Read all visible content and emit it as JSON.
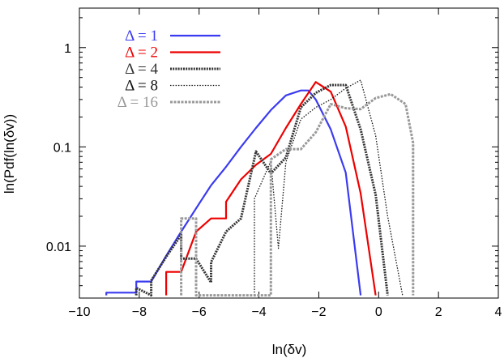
{
  "chart_data": {
    "type": "line",
    "xlabel": "ln(δv)",
    "ylabel": "ln(Pdf(ln(δv))",
    "xlim": [
      -10,
      4
    ],
    "ylim": [
      0.003,
      2.5
    ],
    "yscale": "log",
    "grid": false,
    "legend_position": "top-left",
    "x_ticks": [
      -10,
      -8,
      -6,
      -4,
      -2,
      0,
      2,
      4
    ],
    "x_tick_labels": [
      "−10",
      "−8",
      "−6",
      "−4",
      "−2",
      "0",
      "2",
      "4"
    ],
    "y_ticks": [
      0.01,
      0.1,
      1
    ],
    "y_tick_labels": [
      "0.01",
      "0.1",
      "1"
    ],
    "series": [
      {
        "name": "Δ = 1",
        "color": "#3b3bf0",
        "style": "solid",
        "points": [
          [
            -9.1,
            0.0032
          ],
          [
            -9.1,
            0.0034
          ],
          [
            -8.1,
            0.0034
          ],
          [
            -8.1,
            0.0044
          ],
          [
            -7.6,
            0.0044
          ],
          [
            -7.1,
            0.008
          ],
          [
            -6.6,
            0.014
          ],
          [
            -6.1,
            0.024
          ],
          [
            -5.6,
            0.041
          ],
          [
            -5.1,
            0.063
          ],
          [
            -4.6,
            0.1
          ],
          [
            -4.1,
            0.155
          ],
          [
            -3.6,
            0.235
          ],
          [
            -3.1,
            0.33
          ],
          [
            -2.6,
            0.37
          ],
          [
            -2.35,
            0.37
          ],
          [
            -2.1,
            0.3
          ],
          [
            -1.6,
            0.15
          ],
          [
            -1.1,
            0.055
          ],
          [
            -0.6,
            0.0032
          ]
        ]
      },
      {
        "name": "Δ = 2",
        "color": "#ee0000",
        "style": "solid",
        "points": [
          [
            -7.1,
            0.0032
          ],
          [
            -7.1,
            0.0055
          ],
          [
            -6.6,
            0.0055
          ],
          [
            -6.1,
            0.014
          ],
          [
            -5.6,
            0.019
          ],
          [
            -5.1,
            0.019
          ],
          [
            -5.1,
            0.028
          ],
          [
            -4.6,
            0.047
          ],
          [
            -4.1,
            0.066
          ],
          [
            -3.6,
            0.085
          ],
          [
            -3.1,
            0.155
          ],
          [
            -2.6,
            0.27
          ],
          [
            -2.1,
            0.45
          ],
          [
            -1.6,
            0.36
          ],
          [
            -1.1,
            0.16
          ],
          [
            -0.6,
            0.034
          ],
          [
            -0.1,
            0.0032
          ]
        ]
      },
      {
        "name": "Δ = 4",
        "color": "#333333",
        "style": "dense-dot",
        "points": [
          [
            -8.1,
            0.0032
          ],
          [
            -8.1,
            0.0038
          ],
          [
            -7.6,
            0.0032
          ],
          [
            -7.6,
            0.0045
          ],
          [
            -7.1,
            0.0078
          ],
          [
            -6.6,
            0.013
          ],
          [
            -6.6,
            0.0075
          ],
          [
            -6.1,
            0.0075
          ],
          [
            -5.6,
            0.0043
          ],
          [
            -5.6,
            0.0069
          ],
          [
            -5.1,
            0.014
          ],
          [
            -4.6,
            0.019
          ],
          [
            -4.1,
            0.09
          ],
          [
            -3.6,
            0.054
          ],
          [
            -3.1,
            0.078
          ],
          [
            -2.6,
            0.25
          ],
          [
            -2.1,
            0.35
          ],
          [
            -1.6,
            0.42
          ],
          [
            -1.1,
            0.42
          ],
          [
            -0.6,
            0.15
          ],
          [
            -0.1,
            0.033
          ],
          [
            0.3,
            0.0032
          ]
        ]
      },
      {
        "name": "Δ = 8",
        "color": "#111111",
        "style": "dotted",
        "points": [
          [
            -4.15,
            0.0032
          ],
          [
            -4.15,
            0.03
          ],
          [
            -3.6,
            0.072
          ],
          [
            -3.35,
            0.0095
          ],
          [
            -3.1,
            0.07
          ],
          [
            -2.6,
            0.19
          ],
          [
            -2.1,
            0.25
          ],
          [
            -1.6,
            0.3
          ],
          [
            -1.1,
            0.39
          ],
          [
            -0.6,
            0.47
          ],
          [
            -0.1,
            0.13
          ],
          [
            0.3,
            0.02
          ],
          [
            0.8,
            0.0032
          ]
        ]
      },
      {
        "name": "Δ = 16",
        "color": "#999999",
        "style": "dashed",
        "points": [
          [
            -6.6,
            0.0032
          ],
          [
            -6.6,
            0.019
          ],
          [
            -6.1,
            0.019
          ],
          [
            -6.1,
            0.0032
          ],
          [
            -4.1,
            0.0032
          ],
          [
            -3.6,
            0.0032
          ],
          [
            -3.6,
            0.075
          ],
          [
            -3.1,
            0.095
          ],
          [
            -2.6,
            0.095
          ],
          [
            -2.1,
            0.14
          ],
          [
            -1.6,
            0.27
          ],
          [
            -1.1,
            0.245
          ],
          [
            -0.6,
            0.24
          ],
          [
            -0.1,
            0.31
          ],
          [
            0.4,
            0.34
          ],
          [
            0.9,
            0.27
          ],
          [
            1.15,
            0.11
          ],
          [
            1.15,
            0.0032
          ]
        ]
      }
    ]
  }
}
